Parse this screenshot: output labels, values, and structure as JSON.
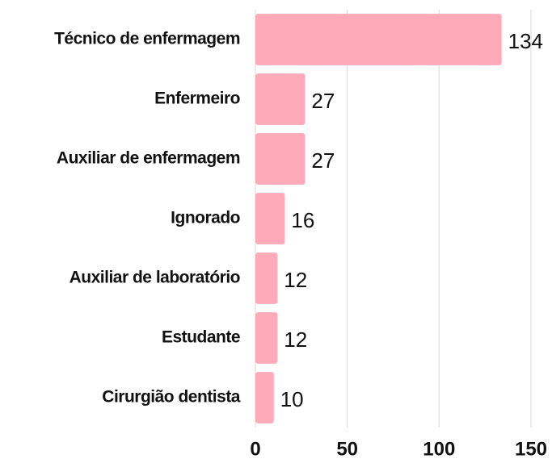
{
  "chart_data": {
    "type": "bar",
    "orientation": "horizontal",
    "categories": [
      "Técnico de enfermagem",
      "Enfermeiro",
      "Auxiliar de enfermagem",
      "Ignorado",
      "Auxiliar de laboratório",
      "Estudante",
      "Cirurgião dentista"
    ],
    "values": [
      134,
      27,
      27,
      16,
      12,
      12,
      10
    ],
    "color": "#ffaab8",
    "xlim": [
      0,
      150
    ],
    "xticks": [
      0,
      50,
      100,
      150
    ],
    "grid": true
  }
}
